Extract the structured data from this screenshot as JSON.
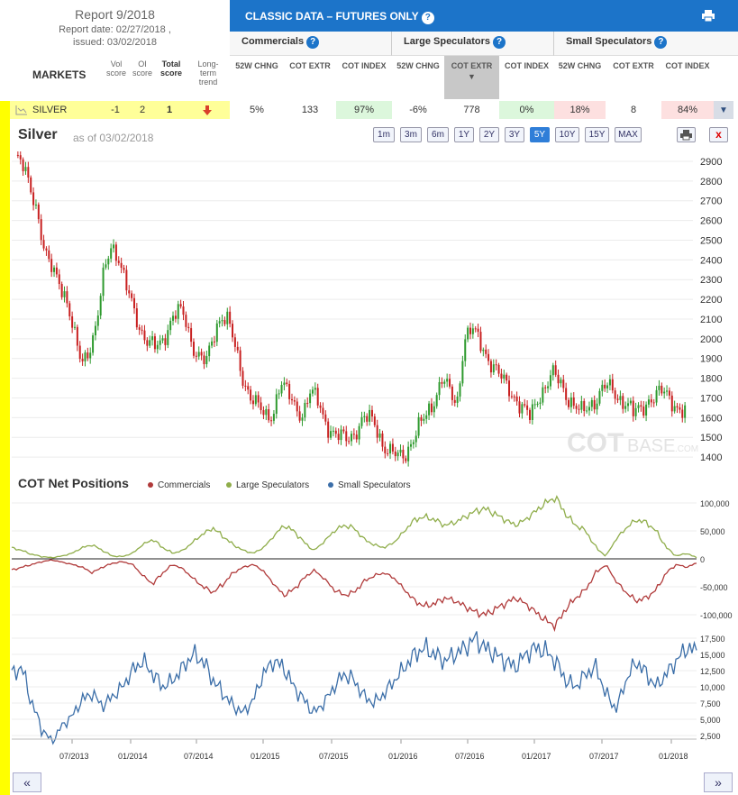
{
  "report": {
    "title": "Report 9/2018",
    "date_line": "Report date: 02/27/2018 ,",
    "issued_line": "issued: 03/02/2018",
    "markets_label": "MARKETS",
    "vol_score_label": "Vol score",
    "oi_score_label": "OI score",
    "total_score_label": "Total score",
    "trend_label": "Long-term trend"
  },
  "classic": {
    "title": "CLASSIC DATA – FUTURES ONLY"
  },
  "groups": [
    {
      "label": "Commercials"
    },
    {
      "label": "Large Speculators"
    },
    {
      "label": "Small Speculators"
    }
  ],
  "col_headers": [
    "52W CHNG",
    "COT EXTR",
    "COT INDEX",
    "52W CHNG",
    "COT EXTR",
    "COT INDEX",
    "52W CHNG",
    "COT EXTR",
    "COT INDEX"
  ],
  "row": {
    "market": "SILVER",
    "vol": "-1",
    "oi": "2",
    "total": "1",
    "values": [
      "5%",
      "133",
      "97%",
      "-6%",
      "778",
      "0%",
      "18%",
      "8",
      "84%"
    ]
  },
  "colors": {
    "header_blue": "#1c74c9",
    "highlight_yellow": "#ffff99",
    "green_cell": "#dcf7dc",
    "red_cell": "#fde0e0",
    "commercials": "#b03a3a",
    "large_specs": "#8fad4a",
    "small_specs": "#3b6ea8",
    "candle_up": "#2e9a2e",
    "candle_down": "#c82020"
  },
  "chart": {
    "title": "Silver",
    "as_of": "as of 03/02/2018",
    "ranges": [
      "1m",
      "3m",
      "6m",
      "1Y",
      "2Y",
      "3Y",
      "5Y",
      "10Y",
      "15Y",
      "MAX"
    ],
    "active_range": "5Y",
    "watermark_a": "COT",
    "watermark_b": "BASE",
    "watermark_c": ".COM"
  },
  "cot": {
    "title": "COT Net Positions",
    "legend": [
      "Commercials",
      "Large Speculators",
      "Small Speculators"
    ]
  },
  "nav": {
    "prev": "«",
    "next": "»"
  },
  "chart_data": [
    {
      "type": "candlestick",
      "title": "Silver",
      "y_ticks": [
        1400,
        1500,
        1600,
        1700,
        1800,
        1900,
        2000,
        2100,
        2200,
        2300,
        2400,
        2500,
        2600,
        2700,
        2800,
        2900
      ],
      "ylim": [
        1350,
        2950
      ],
      "series": [
        {
          "name": "Silver",
          "close": [
            2920,
            2870,
            2780,
            2650,
            2420,
            2350,
            2300,
            2190,
            2010,
            1880,
            1950,
            2060,
            2320,
            2480,
            2420,
            2270,
            2150,
            2050,
            1990,
            1950,
            1980,
            2090,
            2150,
            2100,
            1970,
            1920,
            1880,
            2010,
            2130,
            2100,
            1920,
            1780,
            1720,
            1660,
            1590,
            1620,
            1790,
            1720,
            1650,
            1620,
            1730,
            1690,
            1590,
            1530,
            1500,
            1490,
            1520,
            1580,
            1600,
            1560,
            1460,
            1420,
            1400,
            1420,
            1490,
            1560,
            1620,
            1700,
            1800,
            1730,
            1660,
            2000,
            2050,
            1990,
            1920,
            1860,
            1800,
            1750,
            1700,
            1640,
            1600,
            1700,
            1760,
            1820,
            1780,
            1710,
            1660,
            1620,
            1660,
            1700,
            1760,
            1740,
            1700,
            1680,
            1620,
            1640,
            1690,
            1710,
            1730,
            1700,
            1650,
            1620
          ]
        }
      ]
    },
    {
      "type": "line",
      "title": "COT Net Positions",
      "y_ticks_top": [
        0,
        50000,
        100000
      ],
      "y_ticks_middle": [
        -50000,
        -100000
      ],
      "y_ticks_bottom": [
        2500,
        5000,
        7500,
        10000,
        12500,
        15000,
        17500
      ],
      "x_ticks": [
        "07/2013",
        "01/2014",
        "07/2014",
        "01/2015",
        "07/2015",
        "01/2016",
        "07/2016",
        "01/2017",
        "07/2017",
        "01/2018"
      ],
      "series": [
        {
          "name": "Large Speculators",
          "values": [
            20000,
            15000,
            8000,
            4000,
            2000,
            5000,
            10000,
            20000,
            25000,
            15000,
            5000,
            4000,
            10000,
            25000,
            35000,
            20000,
            10000,
            15000,
            30000,
            45000,
            55000,
            40000,
            25000,
            15000,
            10000,
            20000,
            40000,
            60000,
            50000,
            30000,
            15000,
            30000,
            50000,
            60000,
            55000,
            35000,
            25000,
            20000,
            30000,
            50000,
            70000,
            75000,
            70000,
            60000,
            65000,
            75000,
            85000,
            90000,
            80000,
            70000,
            60000,
            70000,
            85000,
            100000,
            110000,
            80000,
            60000,
            50000,
            20000,
            5000,
            35000,
            55000,
            70000,
            65000,
            50000,
            20000,
            5000,
            10000,
            2000
          ]
        },
        {
          "name": "Commercials",
          "values": [
            -20000,
            -15000,
            -10000,
            -5000,
            -2000,
            -6000,
            -10000,
            -15000,
            -25000,
            -15000,
            -8000,
            -5000,
            -10000,
            -30000,
            -45000,
            -25000,
            -10000,
            -18000,
            -35000,
            -50000,
            -60000,
            -45000,
            -25000,
            -15000,
            -10000,
            -22000,
            -45000,
            -65000,
            -55000,
            -35000,
            -20000,
            -35000,
            -55000,
            -65000,
            -60000,
            -40000,
            -30000,
            -25000,
            -35000,
            -55000,
            -75000,
            -85000,
            -80000,
            -70000,
            -75000,
            -85000,
            -95000,
            -100000,
            -90000,
            -80000,
            -70000,
            -80000,
            -95000,
            -110000,
            -120000,
            -90000,
            -70000,
            -55000,
            -25000,
            -10000,
            -40000,
            -60000,
            -75000,
            -70000,
            -55000,
            -25000,
            -10000,
            -15000,
            -8000
          ]
        },
        {
          "name": "Small Speculators",
          "values": [
            12000,
            13000,
            7500,
            3500,
            1500,
            4000,
            5500,
            8000,
            9000,
            7000,
            8500,
            10000,
            12500,
            14000,
            12000,
            10000,
            11000,
            13000,
            15000,
            14000,
            11000,
            9000,
            7000,
            6000,
            8000,
            12000,
            14000,
            13000,
            10000,
            8000,
            6000,
            7500,
            10000,
            12000,
            11000,
            8500,
            7500,
            9000,
            11000,
            13000,
            15000,
            16000,
            15000,
            14000,
            15000,
            16000,
            17500,
            16000,
            15000,
            14000,
            13000,
            15000,
            16000,
            15500,
            14000,
            11000,
            10000,
            12000,
            13000,
            9000,
            6500,
            11000,
            14000,
            12000,
            10000,
            12000,
            14000,
            16000,
            15500
          ]
        }
      ]
    }
  ]
}
